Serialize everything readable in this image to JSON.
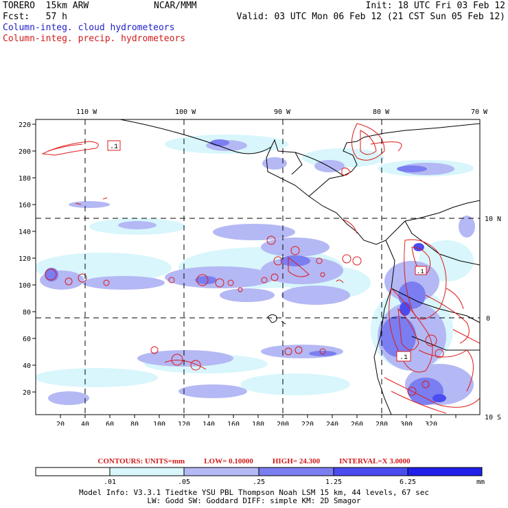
{
  "header": {
    "model": "TORERO  15km ARW",
    "org": "NCAR/MMM",
    "init": "Init: 18 UTC Fri 03 Feb 12",
    "fcst": "Fcst:   57 h",
    "valid": "Valid: 03 UTC Mon 06 Feb 12 (21 CST Sun 05 Feb 12)",
    "field1": "Column-integ. cloud hydrometeors",
    "field2": "Column-integ. precip. hydrometeors"
  },
  "colors": {
    "cloud_field": "#2020c8",
    "precip_field": "#d01818",
    "scale": [
      "#ffffff",
      "#d8f6fb",
      "#b4b8f4",
      "#7a7ef0",
      "#4a4cf0",
      "#2020e8"
    ]
  },
  "map": {
    "lon_labels": [
      "110 W",
      "100 W",
      "90 W",
      "80 W",
      "70 W"
    ],
    "lat_labels": [
      "10 N",
      "0",
      "10 S"
    ],
    "x_ticks": [
      "20",
      "40",
      "60",
      "80",
      "100",
      "120",
      "140",
      "160",
      "180",
      "200",
      "220",
      "240",
      "260",
      "280",
      "300",
      "320"
    ],
    "y_ticks": [
      "220",
      "200",
      "180",
      "160",
      "140",
      "120",
      "100",
      "80",
      "60",
      "40",
      "20"
    ],
    "contour_label_1": ".1",
    "contour_label_2": ".1",
    "contour_label_3": ".1"
  },
  "contours": {
    "units": "CONTOURS:  UNITS=mm",
    "low": "LOW= 0.10000",
    "high": "HIGH=  24.300",
    "interval": "INTERVAL=X  3.0000"
  },
  "colorbar": {
    "labels": [
      ".01",
      ".05",
      ".25",
      "1.25",
      "6.25"
    ],
    "units": "mm"
  },
  "footer": {
    "line1": "Model Info: V3.3.1   Tiedtke YSU PBL  Thompson    Noah LSM  15 km,   44 levels,   67 sec",
    "line2": "LW: Godd SW: Goddard DIFF: simple KM: 2D Smagor"
  }
}
